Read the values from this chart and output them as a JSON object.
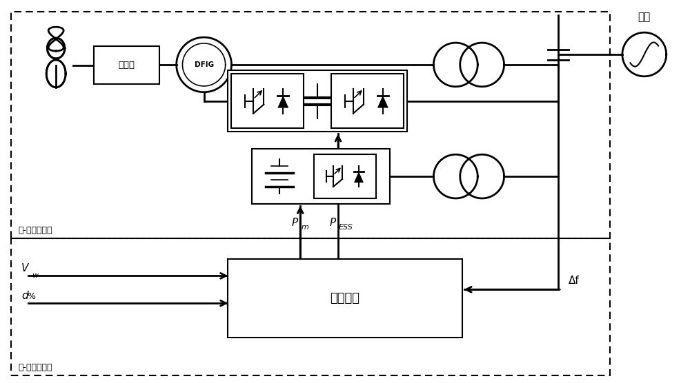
{
  "bg_color": "#ffffff",
  "label_chijianxiang": "齿轮筱",
  "label_DFIG": "DFIG",
  "label_tiaoping": "调频策略",
  "label_fengchu_yi": "风-储一次系统",
  "label_fengchu_er": "风-储二次系统",
  "label_diangwang": "电网",
  "label_Pm": "P",
  "label_Pm_sub": "m",
  "label_PESS": "P",
  "label_PESS_sub": "ESS",
  "label_Vw": "V",
  "label_Vw_sub": "w",
  "label_d": "d",
  "label_d_sup": "%",
  "label_df": "Δf"
}
